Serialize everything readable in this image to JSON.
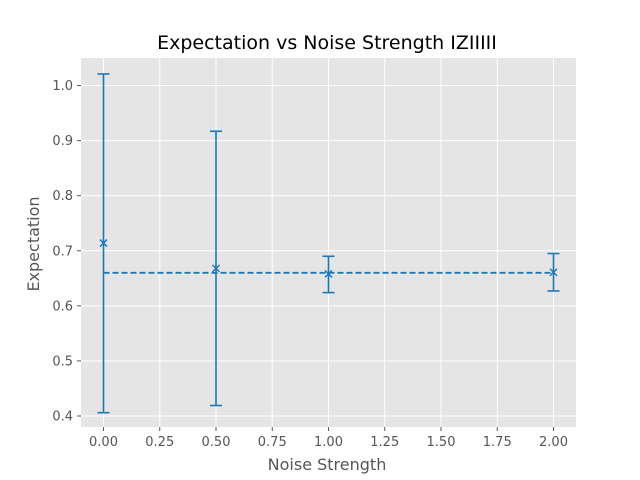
{
  "chart_data": {
    "type": "scatter",
    "title": "Expectation vs Noise Strength IZIIIII",
    "xlabel": "Noise Strength",
    "ylabel": "Expectation",
    "xlim": [
      -0.1,
      2.1
    ],
    "ylim": [
      0.38,
      1.05
    ],
    "xticks": [
      "0.00",
      "0.25",
      "0.50",
      "0.75",
      "1.00",
      "1.25",
      "1.50",
      "1.75",
      "2.00"
    ],
    "yticks": [
      "0.4",
      "0.5",
      "0.6",
      "0.7",
      "0.8",
      "0.9",
      "1.0"
    ],
    "grid": true,
    "series": [
      {
        "marker": "x",
        "color": "#1f77b4",
        "x": [
          0.0,
          0.5,
          1.0,
          2.0
        ],
        "y": [
          0.714,
          0.668,
          0.658,
          0.661
        ],
        "yerr_low": [
          0.406,
          0.419,
          0.624,
          0.627
        ],
        "yerr_high": [
          1.021,
          0.917,
          0.69,
          0.695
        ]
      }
    ],
    "reference_line": {
      "y": 0.66,
      "style": "dashed",
      "color": "#1f77b4"
    },
    "colors": {
      "background": "#e5e5e5",
      "grid": "#ffffff",
      "series": "#1f77b4"
    }
  }
}
